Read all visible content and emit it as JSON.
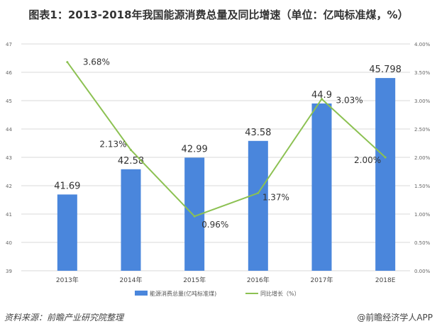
{
  "title": "图表1：2013-2018年我国能源消费总量及同比增速（单位：亿吨标准煤，%）",
  "source": "资料来源：前瞻产业研究院整理",
  "brand": "@前瞻经济学人APP",
  "chart_data": {
    "type": "bar+line",
    "categories": [
      "2013年",
      "2014年",
      "2015年",
      "2016年",
      "2017年",
      "2018E"
    ],
    "series": [
      {
        "name": "能源消费总量(亿吨标准煤)",
        "type": "bar",
        "axis": "left",
        "color": "#4a86dc",
        "values": [
          41.69,
          42.58,
          42.99,
          43.58,
          44.9,
          45.798
        ],
        "labels": [
          "41.69",
          "42.58",
          "42.99",
          "43.58",
          "44.9",
          "45.798"
        ]
      },
      {
        "name": "同比增长（%）",
        "type": "line",
        "axis": "right",
        "color": "#8cc152",
        "values": [
          3.68,
          2.13,
          0.96,
          1.37,
          3.03,
          2.0
        ],
        "labels": [
          "3.68%",
          "2.13%",
          "0.96%",
          "1.37%",
          "3.03%",
          "2.00%"
        ]
      }
    ],
    "y_left": {
      "range": [
        39,
        47
      ],
      "ticks": [
        "39",
        "40",
        "41",
        "42",
        "43",
        "44",
        "45",
        "46",
        "47"
      ]
    },
    "y_right": {
      "range": [
        0,
        4
      ],
      "ticks": [
        "0.00%",
        "0.50%",
        "1.00%",
        "1.50%",
        "2.00%",
        "2.50%",
        "3.00%",
        "3.50%",
        "4.00%"
      ]
    },
    "grid": true,
    "legend": "bottom"
  }
}
